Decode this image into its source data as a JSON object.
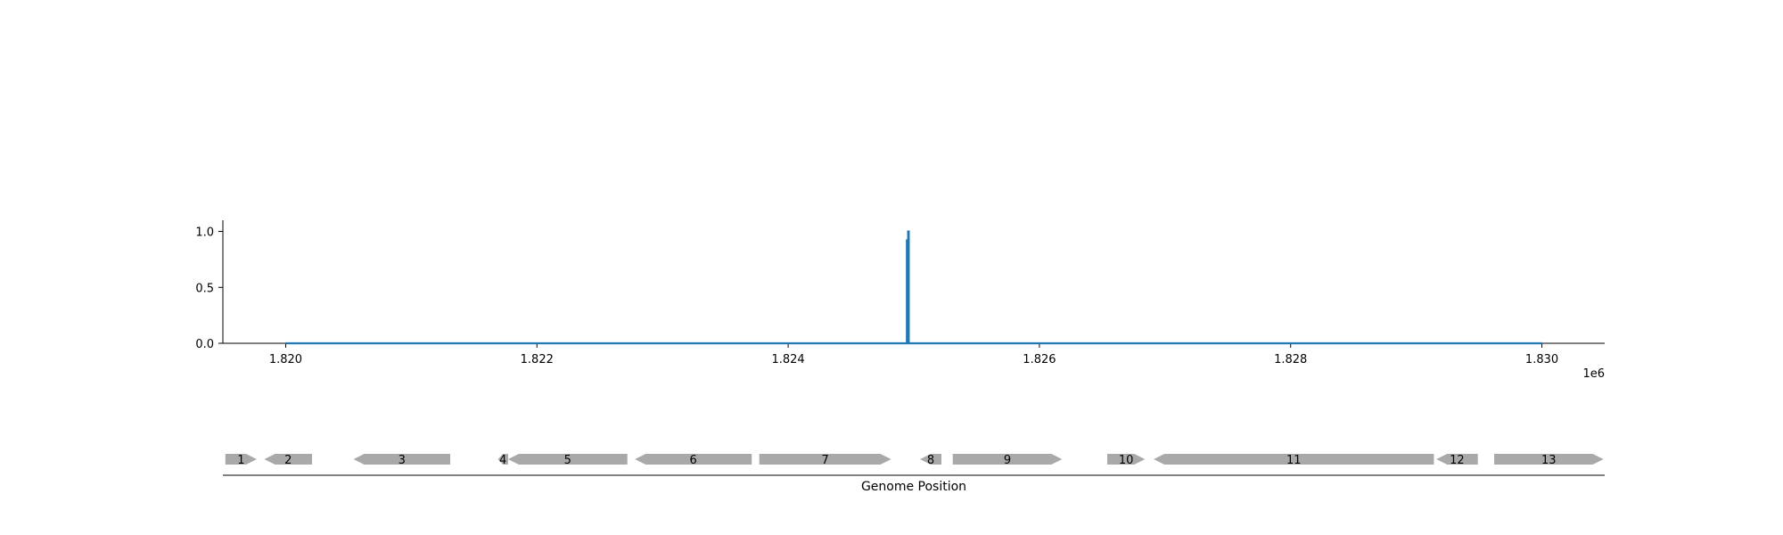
{
  "chart_data": [
    {
      "type": "line",
      "title": "",
      "xlabel": "",
      "ylabel": "",
      "x_offset_label": "1e6",
      "xlim": [
        1819500,
        1830500
      ],
      "ylim": [
        0.0,
        1.1
      ],
      "x_ticks": [
        1820000,
        1822000,
        1824000,
        1826000,
        1828000,
        1830000
      ],
      "x_tick_labels": [
        "1.820",
        "1.822",
        "1.824",
        "1.826",
        "1.828",
        "1.830"
      ],
      "y_ticks": [
        0.0,
        0.5,
        1.0
      ],
      "y_tick_labels": [
        "0.0",
        "0.5",
        "1.0"
      ],
      "grid": false,
      "series": [
        {
          "color": "#1f77b4",
          "x": [
            1820000,
            1824945,
            1824945,
            1824950,
            1824950,
            1824955,
            1824955,
            1824960,
            1824960,
            1830000
          ],
          "y": [
            0.0,
            0.0,
            0.92,
            0.92,
            0.0,
            0.0,
            1.0,
            1.0,
            0.0,
            0.0
          ]
        }
      ]
    },
    {
      "type": "gene-track",
      "xlabel": "Genome Position",
      "xlim": [
        1819500,
        1830500
      ],
      "feature_color": "#a9a9a9",
      "features": [
        {
          "label": "1",
          "start": 1819520,
          "end": 1819770,
          "strand": "+"
        },
        {
          "label": "2",
          "start": 1819830,
          "end": 1820210,
          "strand": "-"
        },
        {
          "label": "3",
          "start": 1820540,
          "end": 1821310,
          "strand": "-"
        },
        {
          "label": "4",
          "start": 1821690,
          "end": 1821770,
          "strand": "-"
        },
        {
          "label": "5",
          "start": 1821770,
          "end": 1822720,
          "strand": "-"
        },
        {
          "label": "6",
          "start": 1822780,
          "end": 1823710,
          "strand": "-"
        },
        {
          "label": "7",
          "start": 1823770,
          "end": 1824820,
          "strand": "+"
        },
        {
          "label": "8",
          "start": 1825050,
          "end": 1825220,
          "strand": "-"
        },
        {
          "label": "9",
          "start": 1825310,
          "end": 1826180,
          "strand": "+"
        },
        {
          "label": "10",
          "start": 1826540,
          "end": 1826840,
          "strand": "+"
        },
        {
          "label": "11",
          "start": 1826910,
          "end": 1829140,
          "strand": "-"
        },
        {
          "label": "12",
          "start": 1829160,
          "end": 1829490,
          "strand": "-"
        },
        {
          "label": "13",
          "start": 1829620,
          "end": 1830490,
          "strand": "+"
        }
      ]
    }
  ]
}
